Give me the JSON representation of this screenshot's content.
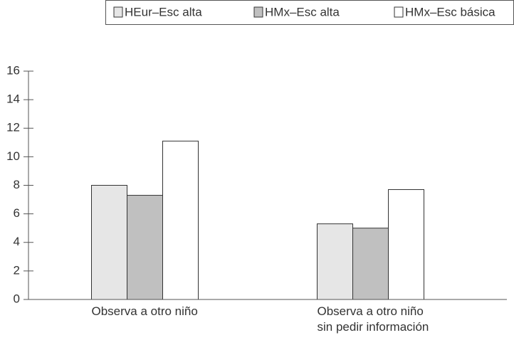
{
  "chart_data": {
    "type": "bar",
    "categories": [
      "Observa a otro niño",
      "Observa a otro niño\nsin pedir información"
    ],
    "series": [
      {
        "name": "HEur–Esc alta",
        "color": "#e6e6e6",
        "values": [
          8.0,
          5.3
        ]
      },
      {
        "name": "HMx–Esc alta",
        "color": "#c0c0c0",
        "values": [
          7.3,
          5.0
        ]
      },
      {
        "name": "HMx–Esc básica",
        "color": "#ffffff",
        "values": [
          11.1,
          7.7
        ]
      }
    ],
    "ylim": [
      0,
      16
    ],
    "yticks": [
      0,
      2,
      4,
      6,
      8,
      10,
      12,
      14,
      16
    ],
    "legend": "top-right"
  }
}
